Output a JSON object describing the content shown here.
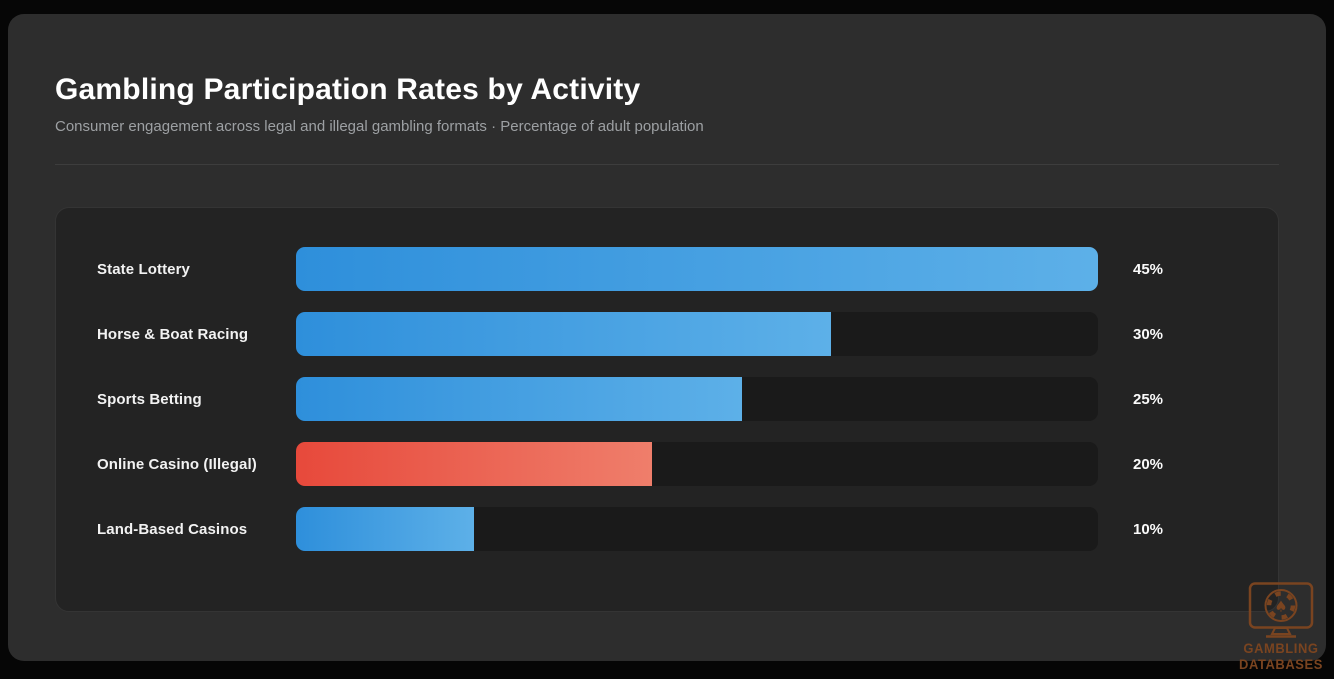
{
  "header": {
    "title": "Gambling Participation Rates by Activity",
    "subtitle": "Consumer engagement across legal and illegal gambling formats · Percentage of adult population"
  },
  "chart_data": {
    "type": "bar",
    "orientation": "horizontal",
    "title": "Gambling Participation Rates by Activity",
    "subtitle": "Consumer engagement across legal and illegal gambling formats · Percentage of adult population",
    "unit": "%",
    "categories": [
      "State Lottery",
      "Horse & Boat Racing",
      "Sports Betting",
      "Online Casino (Illegal)",
      "Land-Based Casinos"
    ],
    "values": [
      45,
      30,
      25,
      20,
      10
    ],
    "value_labels": [
      "45%",
      "30%",
      "25%",
      "20%",
      "10%"
    ],
    "scale_max": 45,
    "highlight_index": 3,
    "bar_style": {
      "default": {
        "from": "#2e8fdb",
        "to": "#5db0e8"
      },
      "highlight": {
        "from": "#e7493b",
        "to": "#ef7e6b"
      }
    },
    "track_color": "#1a1a1a",
    "legend": "none",
    "gridlines": false
  },
  "watermark": {
    "line1": "GAMBLING",
    "line2": "DATABASES",
    "icon": "casino-monitor-icon",
    "color": "#7a4420"
  },
  "colors": {
    "page_bg": "#060606",
    "card_bg": "#2d2d2d",
    "panel_bg": "#232323",
    "divider": "#3d3d3d",
    "title_text": "#ffffff",
    "subtitle_text": "#9da0a3"
  }
}
